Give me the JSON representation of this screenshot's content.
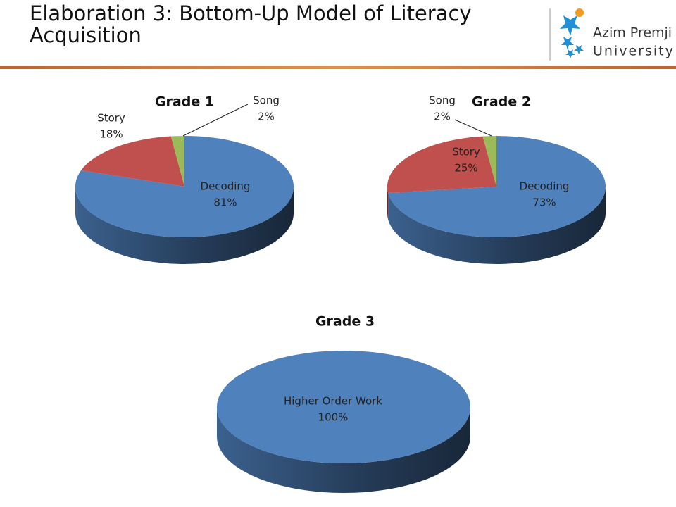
{
  "header": {
    "title": "Elaboration 3: Bottom-Up Model of Literacy Acquisition",
    "logo_line1": "Azim Premji",
    "logo_line2": "University"
  },
  "chart_data": [
    {
      "type": "pie",
      "title": "Grade 1",
      "categories": [
        "Decoding",
        "Story",
        "Song"
      ],
      "values": [
        81,
        18,
        2
      ],
      "value_labels": [
        "81%",
        "18%",
        "2%"
      ],
      "colors": [
        "#4f81bd",
        "#c0504d",
        "#9bbb59"
      ]
    },
    {
      "type": "pie",
      "title": "Grade 2",
      "categories": [
        "Decoding",
        "Story",
        "Song"
      ],
      "values": [
        73,
        25,
        2
      ],
      "value_labels": [
        "73%",
        "25%",
        "2%"
      ],
      "colors": [
        "#4f81bd",
        "#c0504d",
        "#9bbb59"
      ]
    },
    {
      "type": "pie",
      "title": "Grade 3",
      "categories": [
        "Higher Order Work"
      ],
      "values": [
        100
      ],
      "value_labels": [
        "100%"
      ],
      "colors": [
        "#4f81bd"
      ]
    }
  ]
}
